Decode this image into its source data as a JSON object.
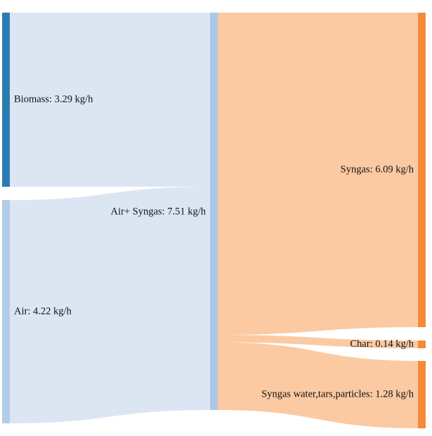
{
  "chart_data": {
    "type": "sankey",
    "unit": "kg/h",
    "nodes": [
      {
        "id": "biomass",
        "label": "Biomass: 3.29 kg/h",
        "value": 3.29,
        "color": "#2e7bb3"
      },
      {
        "id": "air",
        "label": "Air: 4.22 kg/h",
        "value": 4.22,
        "color": "#b3cde6"
      },
      {
        "id": "air_syngas",
        "label": "Air+ Syngas: 7.51 kg/h",
        "value": 7.51,
        "color": "#aec7e8"
      },
      {
        "id": "syngas",
        "label": "Syngas: 6.09 kg/h",
        "value": 6.09,
        "color": "#f58a38"
      },
      {
        "id": "char",
        "label": "Char: 0.14 kg/h",
        "value": 0.14,
        "color": "#f58a38"
      },
      {
        "id": "syngas_water",
        "label": "Syngas water,tars,particles: 1.28 kg/h",
        "value": 1.28,
        "color": "#f58a38"
      }
    ],
    "links": [
      {
        "source": "biomass",
        "target": "air_syngas",
        "value": 3.29,
        "color": "#dce6f3"
      },
      {
        "source": "air",
        "target": "air_syngas",
        "value": 4.22,
        "color": "#dce6f3"
      },
      {
        "source": "air_syngas",
        "target": "syngas",
        "value": 6.09,
        "color": "#fbcaa2"
      },
      {
        "source": "air_syngas",
        "target": "char",
        "value": 0.14,
        "color": "#fbcaa2"
      },
      {
        "source": "air_syngas",
        "target": "syngas_water",
        "value": 1.28,
        "color": "#fbcaa2"
      }
    ]
  }
}
